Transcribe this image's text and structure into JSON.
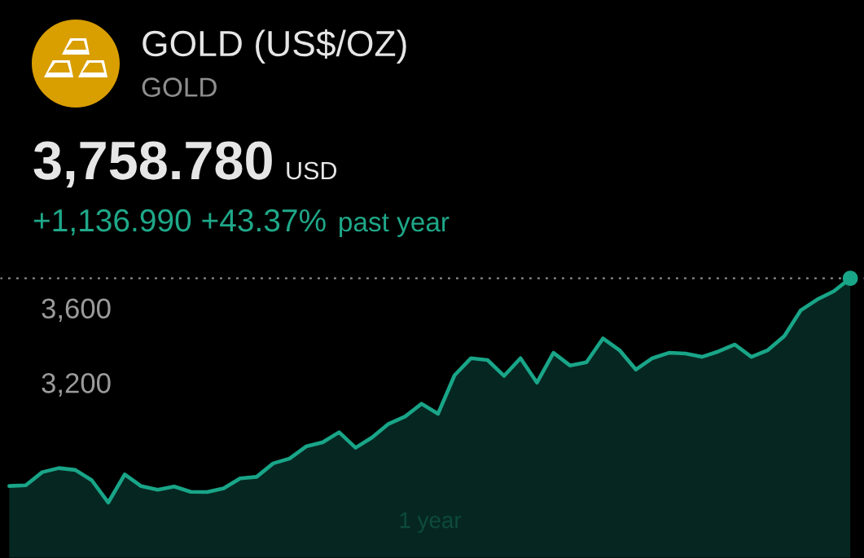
{
  "chart_data": {
    "type": "area",
    "title": "GOLD (US$/OZ)",
    "subtitle": "GOLD",
    "annotations": [
      "3,758.780",
      "USD",
      "+1,136.990 +43.37%",
      "past year",
      "1 year"
    ],
    "categories": [
      null,
      null,
      null,
      null,
      null,
      null,
      null,
      null,
      null,
      null,
      null,
      null,
      null,
      null,
      null,
      null,
      null,
      null,
      null,
      null,
      null,
      null,
      null,
      null,
      null,
      null,
      null,
      null,
      null,
      null,
      null,
      null,
      null,
      null,
      null,
      null,
      null,
      null,
      null,
      null,
      null,
      null,
      null,
      null,
      null,
      null,
      null,
      null,
      null,
      null,
      null,
      null
    ],
    "series": [
      {
        "color": "#19a588",
        "values": [
          2646,
          2650,
          2720,
          2742,
          2732,
          2677,
          2557,
          2708,
          2645,
          2626,
          2643,
          2615,
          2614,
          2633,
          2687,
          2695,
          2767,
          2793,
          2858,
          2880,
          2934,
          2851,
          2906,
          2979,
          3018,
          3087,
          3033,
          3239,
          3331,
          3321,
          3236,
          3331,
          3200,
          3360,
          3292,
          3309,
          3437,
          3374,
          3270,
          3331,
          3360,
          3356,
          3338,
          3367,
          3404,
          3338,
          3374,
          3450,
          3588,
          3646,
          3690,
          3759
        ]
      },
      {
        "type": "scatter",
        "color": "#19a588",
        "values": [
          null,
          null,
          null,
          null,
          null,
          null,
          null,
          null,
          null,
          null,
          null,
          null,
          null,
          null,
          null,
          null,
          null,
          null,
          null,
          null,
          null,
          null,
          null,
          null,
          null,
          null,
          null,
          null,
          null,
          null,
          null,
          null,
          null,
          null,
          null,
          null,
          null,
          null,
          null,
          null,
          null,
          null,
          null,
          null,
          null,
          null,
          null,
          null,
          null,
          null,
          null,
          3759
        ]
      }
    ],
    "ylim": [
      2260,
      3810
    ],
    "yticks": [
      {
        "value": 3200,
        "label": "3,200"
      },
      {
        "value": 3600,
        "label": "3,600"
      }
    ],
    "tick_labels": "y",
    "ref_lines": [
      {
        "axis": "y",
        "value": 3759,
        "color": "#8c8c8c",
        "line_style": "dotted"
      }
    ]
  }
}
